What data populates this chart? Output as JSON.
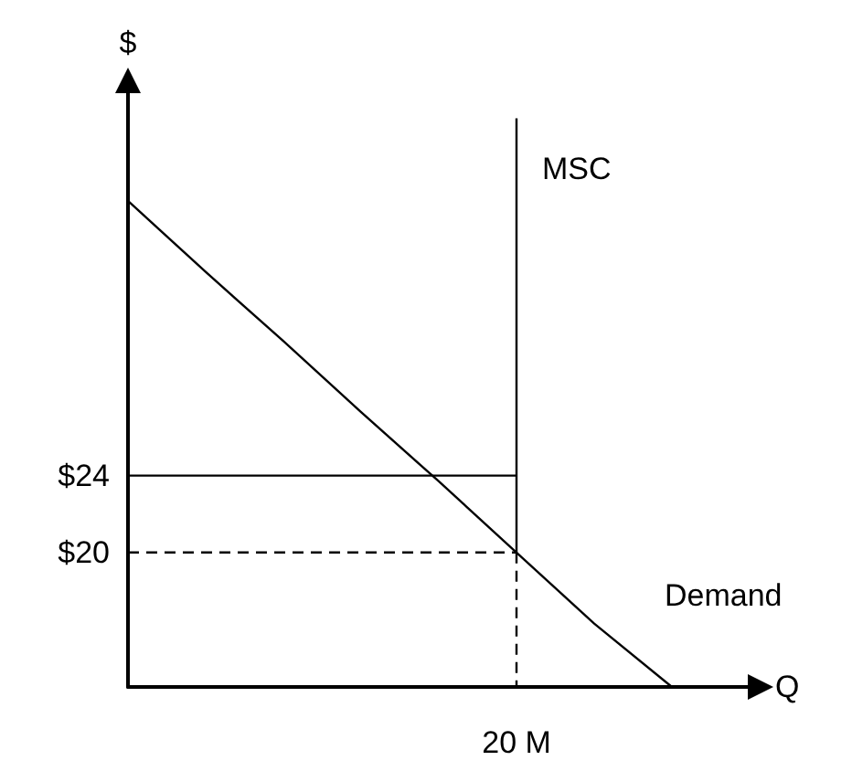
{
  "chart_data": {
    "type": "line",
    "xlabel": "Q",
    "ylabel": "$",
    "ylim": [
      13,
      44
    ],
    "categories": [
      null,
      null,
      null,
      null,
      null,
      "20 M",
      null,
      null,
      null
    ],
    "yticks": [
      {
        "value": 20,
        "label": "$20"
      },
      {
        "value": 24,
        "label": "$24"
      }
    ],
    "grid": false,
    "marker": "none",
    "series": [
      {
        "name": "Demand",
        "color": "#000000",
        "values": [
          38.3,
          34.6,
          31,
          27.3,
          23.7,
          20,
          16.3,
          13,
          null
        ]
      },
      {
        "name": "MSC",
        "color": "#000000",
        "x": [
          "20 M",
          "20 M"
        ],
        "values": [
          42.6,
          20
        ]
      },
      {
        "color": "#000000",
        "values": [
          24,
          24,
          24,
          24,
          24,
          24,
          null,
          null,
          null
        ]
      },
      {
        "color": "#000000",
        "values": [
          20,
          20,
          20,
          20,
          20,
          20,
          null,
          null,
          null
        ],
        "line_style": "dashed"
      },
      {
        "color": "#000000",
        "x": [
          "20 M",
          "20 M"
        ],
        "values": [
          20,
          13
        ],
        "line_style": "dashed"
      }
    ]
  }
}
